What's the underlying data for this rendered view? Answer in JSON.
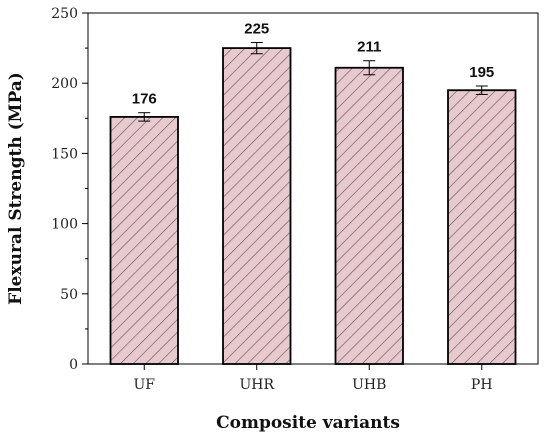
{
  "chart_data": {
    "type": "bar",
    "categories": [
      "UF",
      "UHR",
      "UHB",
      "PH"
    ],
    "values": [
      176,
      225,
      211,
      195
    ],
    "data_labels": [
      "176",
      "225",
      "211",
      "195"
    ],
    "errors": [
      3,
      4,
      5,
      3
    ],
    "xlabel": "Composite variants",
    "ylabel": "Flexural Strength (MPa)",
    "ylim": [
      0,
      250
    ],
    "yticks": [
      0,
      50,
      100,
      150,
      200,
      250
    ],
    "grid": false,
    "legend": "none",
    "bar_fill": "#e8c9ce",
    "hatch_color": "#555555",
    "hatch": "diagonal"
  }
}
